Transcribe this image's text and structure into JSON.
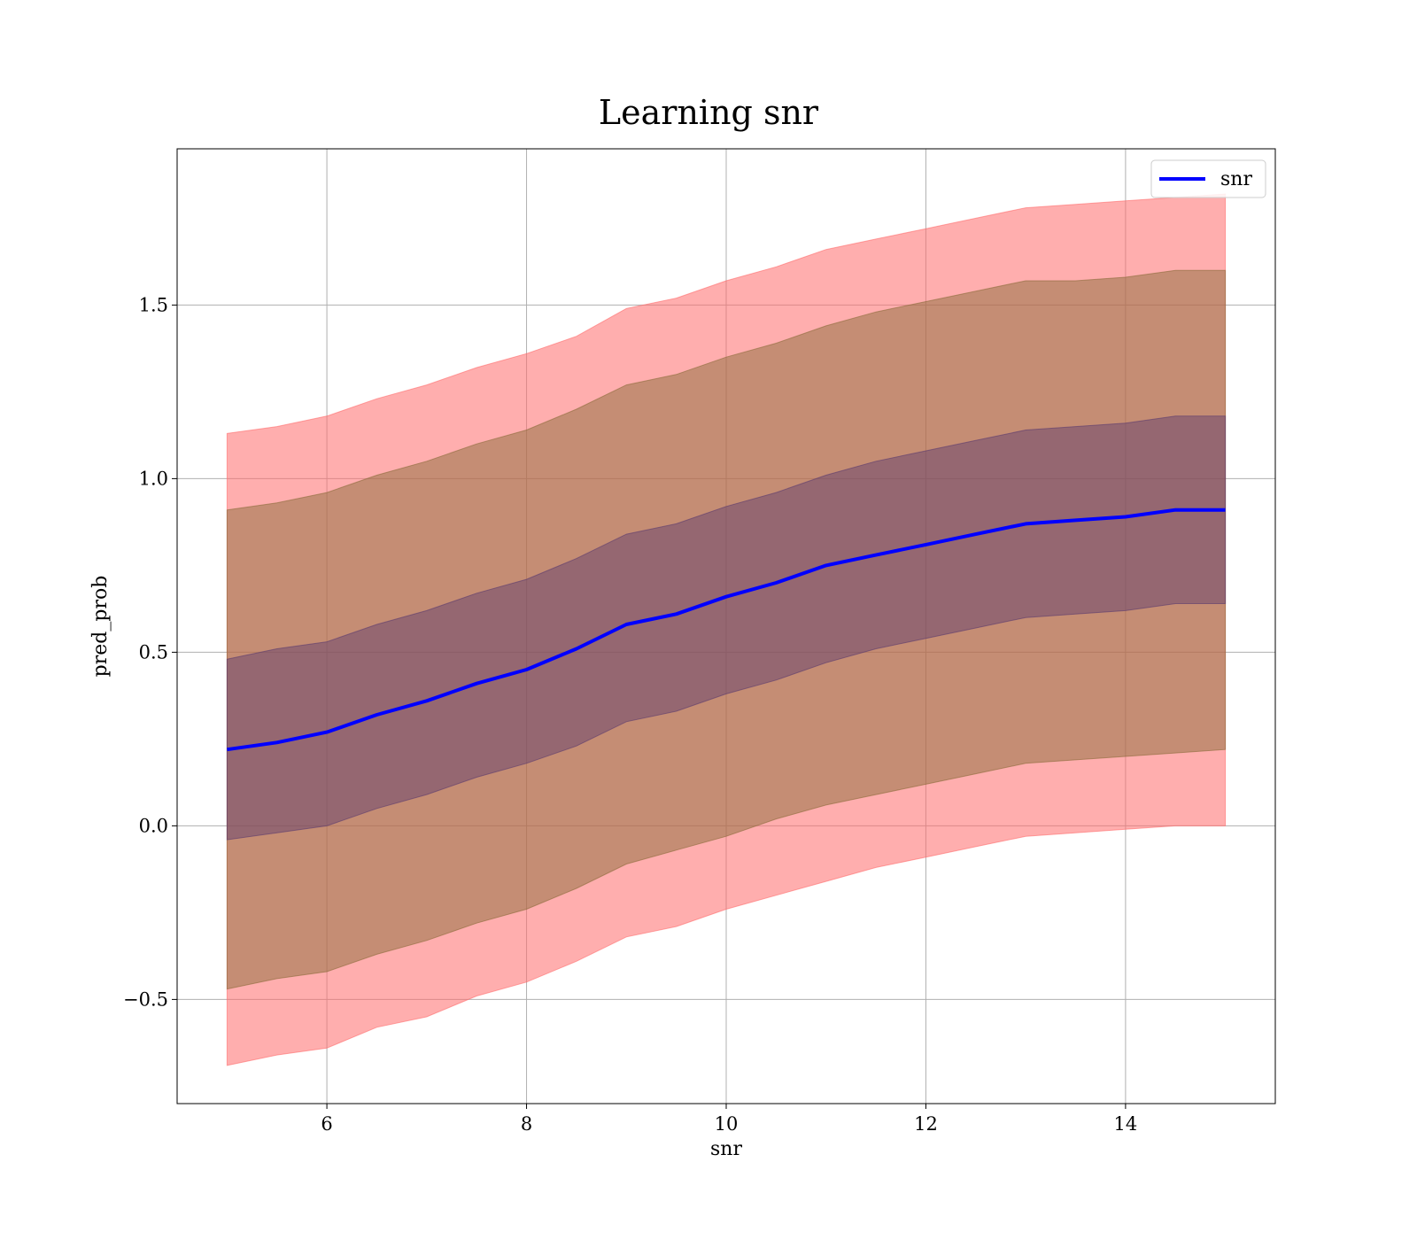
{
  "chart_data": {
    "type": "area",
    "title": "Learning snr",
    "xlabel": "snr",
    "ylabel": "pred_prob",
    "xlim": [
      4.5,
      15.5
    ],
    "ylim": [
      -0.8,
      1.95
    ],
    "xticks": [
      6,
      8,
      10,
      12,
      14
    ],
    "xtick_labels": [
      "6",
      "8",
      "10",
      "12",
      "14"
    ],
    "yticks": [
      -0.5,
      0.0,
      0.5,
      1.0,
      1.5
    ],
    "ytick_labels": [
      "−0.5",
      "0.0",
      "0.5",
      "1.0",
      "1.5"
    ],
    "grid": true,
    "legend": {
      "position": "top-right",
      "entries": [
        "snr"
      ]
    },
    "colors": {
      "mean_line": "#0000ff",
      "band_outer": "#ff6b6b",
      "band_middle": "#8b6b3a",
      "band_inner": "#5a3a6e",
      "outer_alpha": 0.55,
      "middle_alpha": 0.5,
      "inner_alpha": 0.45
    },
    "x": [
      5.0,
      5.5,
      6.0,
      6.5,
      7.0,
      7.5,
      8.0,
      8.5,
      9.0,
      9.5,
      10.0,
      10.5,
      11.0,
      11.5,
      12.0,
      12.5,
      13.0,
      13.5,
      14.0,
      14.5,
      15.0
    ],
    "series": [
      {
        "name": "snr",
        "values": [
          0.22,
          0.24,
          0.27,
          0.32,
          0.36,
          0.41,
          0.45,
          0.51,
          0.58,
          0.61,
          0.66,
          0.7,
          0.75,
          0.78,
          0.81,
          0.84,
          0.87,
          0.88,
          0.89,
          0.91,
          0.91
        ]
      }
    ],
    "bands": [
      {
        "level": "outer",
        "lower": [
          -0.69,
          -0.66,
          -0.64,
          -0.58,
          -0.55,
          -0.49,
          -0.45,
          -0.39,
          -0.32,
          -0.29,
          -0.24,
          -0.2,
          -0.16,
          -0.12,
          -0.09,
          -0.06,
          -0.03,
          -0.02,
          -0.01,
          0.0,
          0.0
        ],
        "upper": [
          1.13,
          1.15,
          1.18,
          1.23,
          1.27,
          1.32,
          1.36,
          1.41,
          1.49,
          1.52,
          1.57,
          1.61,
          1.66,
          1.69,
          1.72,
          1.75,
          1.78,
          1.79,
          1.8,
          1.81,
          1.82
        ]
      },
      {
        "level": "middle",
        "lower": [
          -0.47,
          -0.44,
          -0.42,
          -0.37,
          -0.33,
          -0.28,
          -0.24,
          -0.18,
          -0.11,
          -0.07,
          -0.03,
          0.02,
          0.06,
          0.09,
          0.12,
          0.15,
          0.18,
          0.19,
          0.2,
          0.21,
          0.22
        ],
        "upper": [
          0.91,
          0.93,
          0.96,
          1.01,
          1.05,
          1.1,
          1.14,
          1.2,
          1.27,
          1.3,
          1.35,
          1.39,
          1.44,
          1.48,
          1.51,
          1.54,
          1.57,
          1.57,
          1.58,
          1.6,
          1.6
        ]
      },
      {
        "level": "inner",
        "lower": [
          -0.04,
          -0.02,
          0.0,
          0.05,
          0.09,
          0.14,
          0.18,
          0.23,
          0.3,
          0.33,
          0.38,
          0.42,
          0.47,
          0.51,
          0.54,
          0.57,
          0.6,
          0.61,
          0.62,
          0.64,
          0.64
        ],
        "upper": [
          0.48,
          0.51,
          0.53,
          0.58,
          0.62,
          0.67,
          0.71,
          0.77,
          0.84,
          0.87,
          0.92,
          0.96,
          1.01,
          1.05,
          1.08,
          1.11,
          1.14,
          1.15,
          1.16,
          1.18,
          1.18
        ]
      }
    ]
  }
}
